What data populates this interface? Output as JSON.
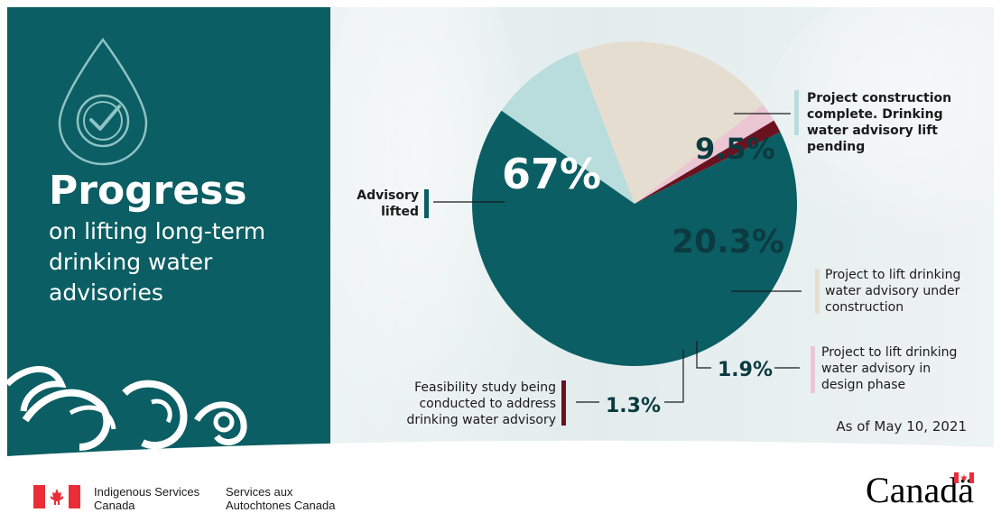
{
  "heading": {
    "title": "Progress",
    "subtitle": "on lifting long-term drinking water advisories"
  },
  "colors": {
    "teal": "#0b5e63",
    "light_blue": "#b9dcdc",
    "beige": "#e6ddd1",
    "pink": "#ebc7d3",
    "maroon": "#6b1220",
    "flag_red": "#eb2d37"
  },
  "chart_data": {
    "type": "pie",
    "title": "",
    "slices": [
      {
        "label": "Project construction complete. Drinking water advisory lift pending",
        "value": 9.5,
        "value_label": "9.5%",
        "color": "#b9dcdc"
      },
      {
        "label": "Project to lift drinking water advisory under construction",
        "value": 20.3,
        "value_label": "20.3%",
        "color": "#e6ddd1"
      },
      {
        "label": "Project to lift drinking water advisory in design phase",
        "value": 1.9,
        "value_label": "1.9%",
        "color": "#ebc7d3"
      },
      {
        "label": "Feasibility study being conducted to address drinking water advisory",
        "value": 1.3,
        "value_label": "1.3%",
        "color": "#6b1220"
      },
      {
        "label": "Advisory lifted",
        "value": 67,
        "value_label": "67%",
        "color": "#0b5e63"
      }
    ]
  },
  "as_of": "As of May 10, 2021",
  "footer": {
    "dept_en": "Indigenous Services Canada",
    "dept_fr": "Services aux Autochtones Canada",
    "wordmark": "Canadä"
  }
}
